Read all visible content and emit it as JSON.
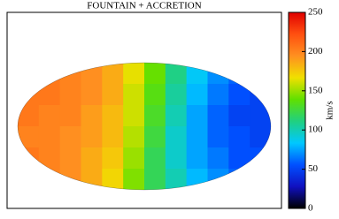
{
  "chart_data": {
    "type": "heatmap",
    "title": "FOUNTAIN + ACCRETION",
    "colorbar_label": "km/s",
    "zlim": [
      0,
      250
    ],
    "zticks": [
      0,
      50,
      100,
      150,
      200,
      250
    ],
    "colorscale": [
      "#000000",
      "#1010c0",
      "#0050ff",
      "#00c8ff",
      "#20d080",
      "#60e000",
      "#f0e000",
      "#ff9020",
      "#ff5010",
      "#e00000"
    ],
    "values": [
      [
        210,
        205,
        200,
        195,
        185,
        165,
        140,
        110,
        85,
        70,
        60,
        55
      ],
      [
        205,
        205,
        200,
        195,
        185,
        160,
        135,
        105,
        80,
        65,
        55,
        50
      ],
      [
        205,
        200,
        200,
        190,
        180,
        160,
        130,
        100,
        75,
        60,
        50,
        50
      ],
      [
        200,
        200,
        195,
        190,
        180,
        155,
        125,
        95,
        75,
        60,
        55,
        50
      ],
      [
        205,
        200,
        195,
        185,
        175,
        150,
        120,
        95,
        75,
        65,
        55,
        55
      ],
      [
        200,
        200,
        195,
        185,
        170,
        145,
        120,
        100,
        80,
        70,
        60,
        55
      ]
    ]
  }
}
